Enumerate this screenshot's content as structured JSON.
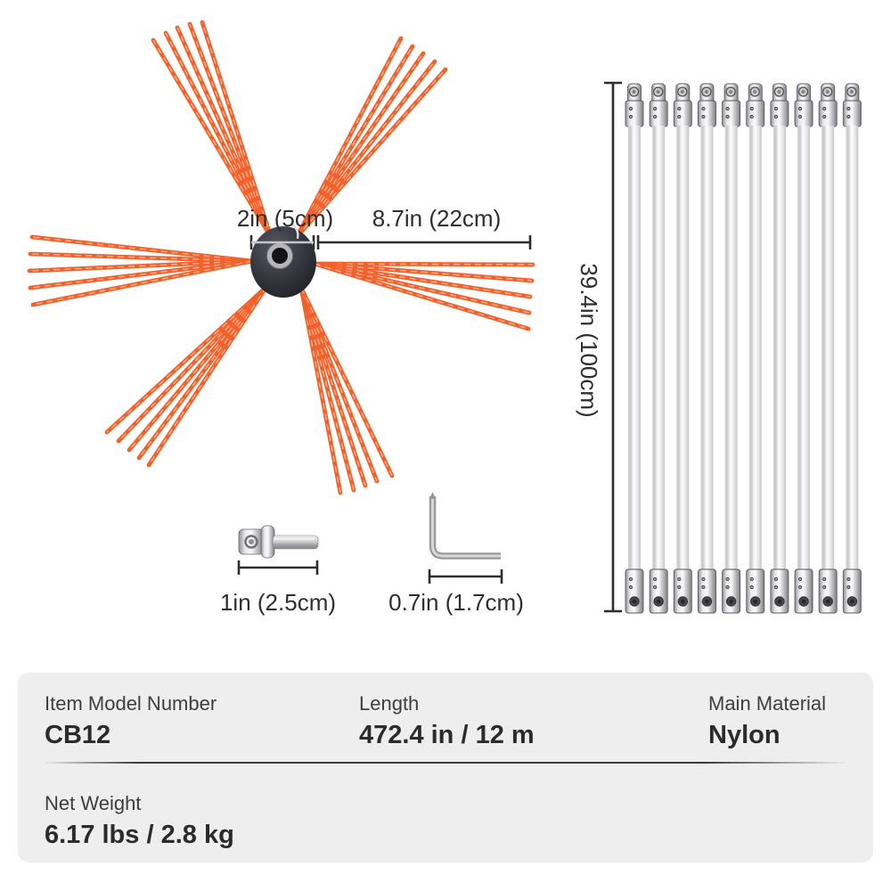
{
  "illustration": {
    "brush": {
      "hub_diameter_label": "2in (5cm)",
      "bristle_length_label": "8.7in (22cm)",
      "bristle_color": "#f1612a",
      "bristle_highlight": "rgba(255,255,255,0.45)",
      "hub_color": "#2f3038",
      "cluster_count": 6,
      "strands_per_cluster": 5
    },
    "rods": {
      "count": 10,
      "length_label": "39.4in (100cm)",
      "rod_color": "#ffffff",
      "connector_color": "#bdbdc1"
    },
    "drill_adapter": {
      "length_label": "1in (2.5cm)"
    },
    "hex_wrench": {
      "length_label": "0.7in (1.7cm)"
    },
    "dimension_line_color": "#2d2d2f"
  },
  "specs": {
    "panel_background": "#eeeeee",
    "row1": [
      {
        "label": "Item Model Number",
        "value": "CB12"
      },
      {
        "label": "Length",
        "value": "472.4 in / 12 m"
      },
      {
        "label": "Main Material",
        "value": "Nylon"
      }
    ],
    "row2": [
      {
        "label": "Net Weight",
        "value": "6.17 lbs / 2.8 kg"
      }
    ]
  }
}
